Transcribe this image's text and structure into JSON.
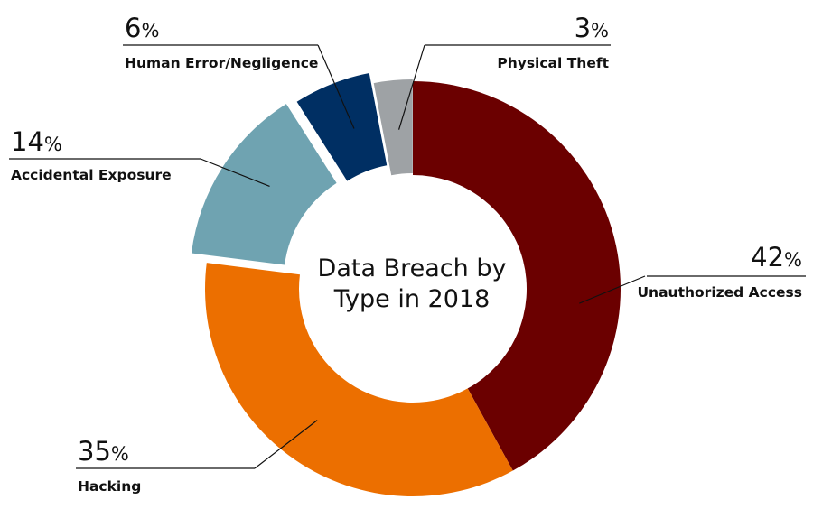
{
  "chart_data": {
    "type": "pie",
    "title_lines": [
      "Data Breach by",
      "Type in 2018"
    ],
    "value_suffix": "%",
    "slices": [
      {
        "label": "Unauthorized Access",
        "value": 42,
        "value_text": "42",
        "color": "#6b0000"
      },
      {
        "label": "Hacking",
        "value": 35,
        "value_text": "35",
        "color": "#ec6f00"
      },
      {
        "label": "Accidental Exposure",
        "value": 14,
        "value_text": "14",
        "color": "#6fa3b1"
      },
      {
        "label": "Human Error/Negligence",
        "value": 6,
        "value_text": "6",
        "color": "#002f63"
      },
      {
        "label": "Physical Theft",
        "value": 3,
        "value_text": "3",
        "color": "#9ea2a5"
      }
    ]
  }
}
